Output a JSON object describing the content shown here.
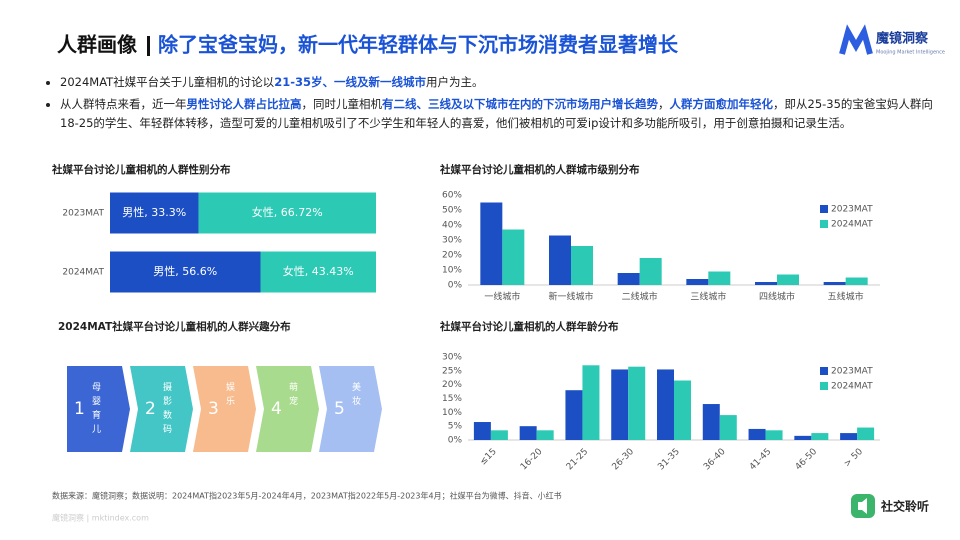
{
  "header": {
    "tag": "人群画像",
    "title": "除了宝爸宝妈，新一代年轻群体与下沉市场消费者显著增长",
    "logo": "魔镜洞察",
    "logo_sub": "Moojing Market Intelligence"
  },
  "bullets": [
    {
      "segments": [
        {
          "text": "2024MAT社媒平台关于儿童相机的讨论以"
        },
        {
          "text": "21-35岁、一线及新一线城市",
          "bold": true
        },
        {
          "text": "用户为主。"
        }
      ]
    },
    {
      "segments": [
        {
          "text": "从人群特点来看，近一年"
        },
        {
          "text": "男性讨论人群占比拉高",
          "bold": true
        },
        {
          "text": "，同时儿童相机"
        },
        {
          "text": "有二线、三线及以下城市在内的下沉市场用户增长趋势",
          "bold": true
        },
        {
          "text": "，"
        },
        {
          "text": "人群方面愈加年轻化",
          "bold": true
        },
        {
          "text": "，即从25-35的宝爸宝妈人群向18-25的学生、年轻群体转移，造型可爱的儿童相机吸引了不少学生和年轻人的喜爱，他们被相机的可爱ip设计和多功能所吸引，用于创意拍摄和记录生活。"
        }
      ]
    }
  ],
  "chart_data": [
    {
      "type": "stacked-hbar",
      "title": "社媒平台讨论儿童相机的人群性别分布",
      "categories": [
        "2023MAT",
        "2024MAT"
      ],
      "series": [
        {
          "color": "#1d4fc4",
          "values": [
            33.3,
            56.6
          ],
          "value_labels": [
            "男性, 33.3%",
            "男性, 56.6%"
          ]
        },
        {
          "color": "#2cc9b4",
          "values": [
            66.72,
            43.43
          ],
          "value_labels": [
            "女性, 66.72%",
            "女性, 43.43%"
          ]
        }
      ]
    },
    {
      "type": "bar",
      "title": "社媒平台讨论儿童相机的人群城市级别分布",
      "categories": [
        "一线城市",
        "新一线城市",
        "二线城市",
        "三线城市",
        "四线城市",
        "五线城市"
      ],
      "series": [
        {
          "name": "2023MAT",
          "color": "#1d4fc4",
          "values": [
            55,
            33,
            8,
            4,
            2,
            2
          ]
        },
        {
          "name": "2024MAT",
          "color": "#2cc9b4",
          "values": [
            37,
            26,
            18,
            9,
            7,
            5
          ]
        }
      ],
      "ylim": [
        0,
        60
      ],
      "yticks": [
        {
          "value": 0,
          "label": "0%"
        },
        {
          "value": 10,
          "label": "10%"
        },
        {
          "value": 20,
          "label": "20%"
        },
        {
          "value": 30,
          "label": "30%"
        },
        {
          "value": 40,
          "label": "40%"
        },
        {
          "value": 50,
          "label": "50%"
        },
        {
          "value": 60,
          "label": "60%"
        }
      ],
      "legend": "right"
    },
    {
      "type": "flow",
      "title": "2024MAT社媒平台讨论儿童相机的人群兴趣分布",
      "items": [
        {
          "number": "1",
          "label": "母婴育儿",
          "color": "#3b66d4"
        },
        {
          "number": "2",
          "label": "摄影数码",
          "color": "#45c6c6"
        },
        {
          "number": "3",
          "label": "娱乐",
          "color": "#f8bb8e"
        },
        {
          "number": "4",
          "label": "萌宠",
          "color": "#a8db8d"
        },
        {
          "number": "5",
          "label": "美妆",
          "color": "#a5bff2"
        }
      ]
    },
    {
      "type": "bar",
      "title": "社媒平台讨论儿童相机的人群年龄分布",
      "categories": [
        "≤15",
        "16-20",
        "21-25",
        "26-30",
        "31-35",
        "36-40",
        "41-45",
        "46-50",
        "> 50"
      ],
      "series": [
        {
          "name": "2023MAT",
          "color": "#1d4fc4",
          "values": [
            6.5,
            5,
            18,
            25.5,
            25.5,
            13,
            4,
            1.5,
            2.5
          ]
        },
        {
          "name": "2024MAT",
          "color": "#2cc9b4",
          "values": [
            3.5,
            3.5,
            27,
            26.5,
            21.5,
            9,
            3.5,
            2.5,
            4.5
          ]
        }
      ],
      "ylim": [
        0,
        30
      ],
      "yticks": [
        {
          "value": 0,
          "label": "0%"
        },
        {
          "value": 5,
          "label": "5%"
        },
        {
          "value": 10,
          "label": "10%"
        },
        {
          "value": 15,
          "label": "15%"
        },
        {
          "value": 20,
          "label": "20%"
        },
        {
          "value": 25,
          "label": "25%"
        },
        {
          "value": 30,
          "label": "30%"
        }
      ],
      "legend": "right"
    }
  ],
  "footer": {
    "source": "数据来源：魔镜洞察；数据说明：2024MAT指2023年5月-2024年4月，2023MAT指2022年5月-2023年4月；社媒平台为微博、抖音、小红书",
    "site": "魔镜洞察 | mktindex.com",
    "badge": "社交聆听"
  }
}
